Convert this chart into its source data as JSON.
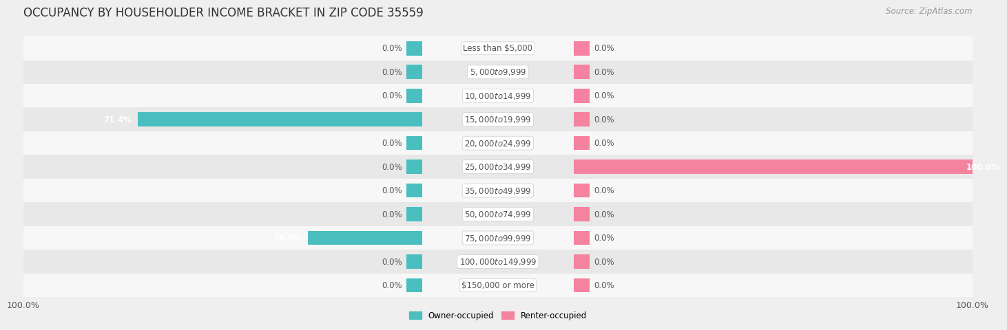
{
  "title": "OCCUPANCY BY HOUSEHOLDER INCOME BRACKET IN ZIP CODE 35559",
  "source": "Source: ZipAtlas.com",
  "categories": [
    "Less than $5,000",
    "$5,000 to $9,999",
    "$10,000 to $14,999",
    "$15,000 to $19,999",
    "$20,000 to $24,999",
    "$25,000 to $34,999",
    "$35,000 to $49,999",
    "$50,000 to $74,999",
    "$75,000 to $99,999",
    "$100,000 to $149,999",
    "$150,000 or more"
  ],
  "owner_values": [
    0.0,
    0.0,
    0.0,
    71.4,
    0.0,
    0.0,
    0.0,
    0.0,
    28.6,
    0.0,
    0.0
  ],
  "renter_values": [
    0.0,
    0.0,
    0.0,
    0.0,
    0.0,
    100.0,
    0.0,
    0.0,
    0.0,
    0.0,
    0.0
  ],
  "owner_color": "#4bbfbf",
  "renter_color": "#f5829e",
  "owner_label": "Owner-occupied",
  "renter_label": "Renter-occupied",
  "bg_color": "#efefef",
  "row_colors": [
    "#f7f7f7",
    "#e8e8e8"
  ],
  "bar_height": 0.6,
  "label_color": "#555555",
  "title_color": "#333333",
  "x_max": 100,
  "title_fontsize": 12,
  "source_fontsize": 8.5,
  "tick_fontsize": 9,
  "value_fontsize": 8.5,
  "category_fontsize": 8.5
}
